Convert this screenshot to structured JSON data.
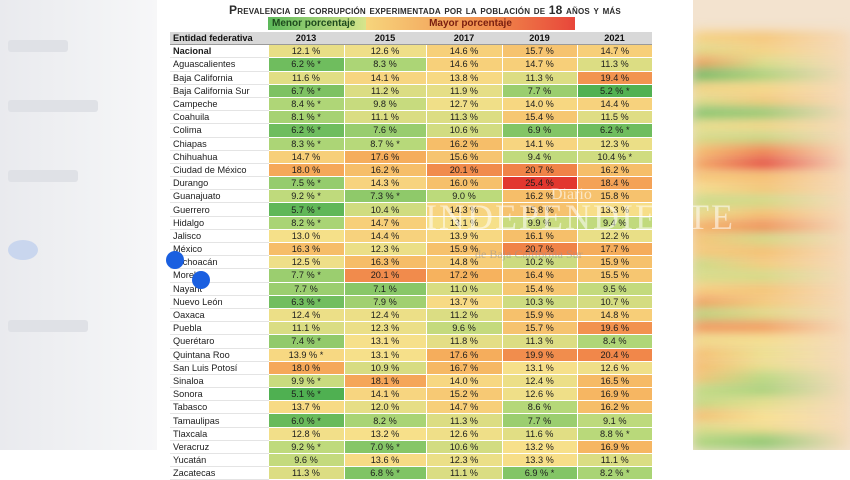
{
  "page": {
    "title": "Prevalencia de corrupción experimentada por la población de 18 años y más",
    "legend": {
      "low": "Menor porcentaje",
      "high": "Mayor porcentaje"
    },
    "watermark": {
      "top": "Diario",
      "main": "INDEPENDIENTE",
      "sub": "de Baja California Sur"
    }
  },
  "colors": {
    "low": "#5cb85a",
    "mid": "#f7e08a",
    "high": "#e8463a",
    "header_bg": "#d8d8d8"
  },
  "chart_data": {
    "type": "table",
    "title": "Prevalencia de corrupción experimentada por la población de 18 años y más",
    "column_header": "Entidad federativa",
    "years": [
      "2013",
      "2015",
      "2017",
      "2019",
      "2021"
    ],
    "color_scale": {
      "min_label": "Menor porcentaje",
      "max_label": "Mayor porcentaje",
      "range": [
        5.0,
        25.4
      ]
    },
    "rows": [
      {
        "entity": "Nacional",
        "values": [
          "12.1 %",
          "12.6 %",
          "14.6 %",
          "15.7 %",
          "14.7 %"
        ],
        "nums": [
          12.1,
          12.6,
          14.6,
          15.7,
          14.7
        ]
      },
      {
        "entity": "Aguascalientes",
        "values": [
          "6.2 % *",
          "8.3 %",
          "14.6 %",
          "14.7 %",
          "11.3 %"
        ],
        "nums": [
          6.2,
          8.3,
          14.6,
          14.7,
          11.3
        ]
      },
      {
        "entity": "Baja California",
        "values": [
          "11.6 %",
          "14.1 %",
          "13.8 %",
          "11.3 %",
          "19.4 %"
        ],
        "nums": [
          11.6,
          14.1,
          13.8,
          11.3,
          19.4
        ]
      },
      {
        "entity": "Baja California Sur",
        "values": [
          "6.7 % *",
          "11.2 %",
          "11.9 %",
          "7.7 %",
          "5.2 % *"
        ],
        "nums": [
          6.7,
          11.2,
          11.9,
          7.7,
          5.2
        ]
      },
      {
        "entity": "Campeche",
        "values": [
          "8.4 % *",
          "9.8 %",
          "12.7 %",
          "14.0 %",
          "14.4 %"
        ],
        "nums": [
          8.4,
          9.8,
          12.7,
          14.0,
          14.4
        ]
      },
      {
        "entity": "Coahuila",
        "values": [
          "8.1 % *",
          "11.1 %",
          "11.3 %",
          "15.4 %",
          "11.5 %"
        ],
        "nums": [
          8.1,
          11.1,
          11.3,
          15.4,
          11.5
        ]
      },
      {
        "entity": "Colima",
        "values": [
          "6.2 % *",
          "7.6 %",
          "10.6 %",
          "6.9 %",
          "6.2 % *"
        ],
        "nums": [
          6.2,
          7.6,
          10.6,
          6.9,
          6.2
        ]
      },
      {
        "entity": "Chiapas",
        "values": [
          "8.3 % *",
          "8.7 % *",
          "16.2 %",
          "14.1 %",
          "12.3 %"
        ],
        "nums": [
          8.3,
          8.7,
          16.2,
          14.1,
          12.3
        ]
      },
      {
        "entity": "Chihuahua",
        "values": [
          "14.7 %",
          "17.6 %",
          "15.6 %",
          "9.4 %",
          "10.4 % *"
        ],
        "nums": [
          14.7,
          17.6,
          15.6,
          9.4,
          10.4
        ]
      },
      {
        "entity": "Ciudad de México",
        "values": [
          "18.0 %",
          "16.2 %",
          "20.1 %",
          "20.7 %",
          "16.2 %"
        ],
        "nums": [
          18.0,
          16.2,
          20.1,
          20.7,
          16.2
        ]
      },
      {
        "entity": "Durango",
        "values": [
          "7.5 % *",
          "14.3 %",
          "16.0 %",
          "25.4 %",
          "18.4 %"
        ],
        "nums": [
          7.5,
          14.3,
          16.0,
          25.4,
          18.4
        ]
      },
      {
        "entity": "Guanajuato",
        "values": [
          "9.2 % *",
          "7.3 % *",
          "9.0 %",
          "16.2 %",
          "15.8 %"
        ],
        "nums": [
          9.2,
          7.3,
          9.0,
          16.2,
          15.8
        ]
      },
      {
        "entity": "Guerrero",
        "values": [
          "5.7 % *",
          "10.4 %",
          "14.3 %",
          "15.8 %",
          "13.3 %"
        ],
        "nums": [
          5.7,
          10.4,
          14.3,
          15.8,
          13.3
        ]
      },
      {
        "entity": "Hidalgo",
        "values": [
          "8.2 % *",
          "14.7 %",
          "13.1 %",
          "9.9 %",
          "9.4 %"
        ],
        "nums": [
          8.2,
          14.7,
          13.1,
          9.9,
          9.4
        ]
      },
      {
        "entity": "Jalisco",
        "values": [
          "13.0 %",
          "14.4 %",
          "13.9 %",
          "16.1 %",
          "12.2 %"
        ],
        "nums": [
          13.0,
          14.4,
          13.9,
          16.1,
          12.2
        ]
      },
      {
        "entity": "México",
        "values": [
          "16.3 %",
          "12.3 %",
          "15.9 %",
          "20.7 %",
          "17.7 %"
        ],
        "nums": [
          16.3,
          12.3,
          15.9,
          20.7,
          17.7
        ]
      },
      {
        "entity": "Michoacán",
        "values": [
          "12.5 %",
          "16.3 %",
          "14.8 %",
          "10.2 %",
          "15.9 %"
        ],
        "nums": [
          12.5,
          16.3,
          14.8,
          10.2,
          15.9
        ]
      },
      {
        "entity": "Morelos",
        "values": [
          "7.7 % *",
          "20.1 %",
          "17.2 %",
          "16.4 %",
          "15.5 %"
        ],
        "nums": [
          7.7,
          20.1,
          17.2,
          16.4,
          15.5
        ]
      },
      {
        "entity": "Nayarit",
        "values": [
          "7.7 %",
          "7.1 %",
          "11.0 %",
          "15.4 %",
          "9.5 %"
        ],
        "nums": [
          7.7,
          7.1,
          11.0,
          15.4,
          9.5
        ]
      },
      {
        "entity": "Nuevo León",
        "values": [
          "6.3 % *",
          "7.9 %",
          "13.7 %",
          "10.3 %",
          "10.7 %"
        ],
        "nums": [
          6.3,
          7.9,
          13.7,
          10.3,
          10.7
        ]
      },
      {
        "entity": "Oaxaca",
        "values": [
          "12.4 %",
          "12.4 %",
          "11.2 %",
          "15.9 %",
          "14.8 %"
        ],
        "nums": [
          12.4,
          12.4,
          11.2,
          15.9,
          14.8
        ]
      },
      {
        "entity": "Puebla",
        "values": [
          "11.1 %",
          "12.3 %",
          "9.6 %",
          "15.7 %",
          "19.6 %"
        ],
        "nums": [
          11.1,
          12.3,
          9.6,
          15.7,
          19.6
        ]
      },
      {
        "entity": "Querétaro",
        "values": [
          "7.4 % *",
          "13.1 %",
          "11.8 %",
          "11.3 %",
          "8.4 %"
        ],
        "nums": [
          7.4,
          13.1,
          11.8,
          11.3,
          8.4
        ]
      },
      {
        "entity": "Quintana Roo",
        "values": [
          "13.9 % *",
          "13.1 %",
          "17.6 %",
          "19.9 %",
          "20.4 %"
        ],
        "nums": [
          13.9,
          13.1,
          17.6,
          19.9,
          20.4
        ]
      },
      {
        "entity": "San Luis Potosí",
        "values": [
          "18.0 %",
          "10.9 %",
          "16.7 %",
          "13.1 %",
          "12.6 %"
        ],
        "nums": [
          18.0,
          10.9,
          16.7,
          13.1,
          12.6
        ]
      },
      {
        "entity": "Sinaloa",
        "values": [
          "9.9 % *",
          "18.1 %",
          "14.0 %",
          "12.4 %",
          "16.5 %"
        ],
        "nums": [
          9.9,
          18.1,
          14.0,
          12.4,
          16.5
        ]
      },
      {
        "entity": "Sonora",
        "values": [
          "5.1 % *",
          "14.1 %",
          "15.2 %",
          "12.6 %",
          "16.9 %"
        ],
        "nums": [
          5.1,
          14.1,
          15.2,
          12.6,
          16.9
        ]
      },
      {
        "entity": "Tabasco",
        "values": [
          "13.7 %",
          "12.0 %",
          "14.7 %",
          "8.6 %",
          "16.2 %"
        ],
        "nums": [
          13.7,
          12.0,
          14.7,
          8.6,
          16.2
        ]
      },
      {
        "entity": "Tamaulipas",
        "values": [
          "6.0 % *",
          "8.2 %",
          "11.3 %",
          "7.7 %",
          "9.1 %"
        ],
        "nums": [
          6.0,
          8.2,
          11.3,
          7.7,
          9.1
        ]
      },
      {
        "entity": "Tlaxcala",
        "values": [
          "12.8 %",
          "13.2 %",
          "12.6 %",
          "11.6 %",
          "8.8 % *"
        ],
        "nums": [
          12.8,
          13.2,
          12.6,
          11.6,
          8.8
        ]
      },
      {
        "entity": "Veracruz",
        "values": [
          "9.2 % *",
          "7.0 % *",
          "10.6 %",
          "13.2 %",
          "16.9 %"
        ],
        "nums": [
          9.2,
          7.0,
          10.6,
          13.2,
          16.9
        ]
      },
      {
        "entity": "Yucatán",
        "values": [
          "9.6 %",
          "13.6 %",
          "12.3 %",
          "13.3 %",
          "11.1 %"
        ],
        "nums": [
          9.6,
          13.6,
          12.3,
          13.3,
          11.1
        ]
      },
      {
        "entity": "Zacatecas",
        "values": [
          "11.3 %",
          "6.8 % *",
          "11.1 %",
          "6.9 % *",
          "8.2 % *"
        ],
        "nums": [
          11.3,
          6.8,
          11.1,
          6.9,
          8.2
        ]
      }
    ]
  }
}
